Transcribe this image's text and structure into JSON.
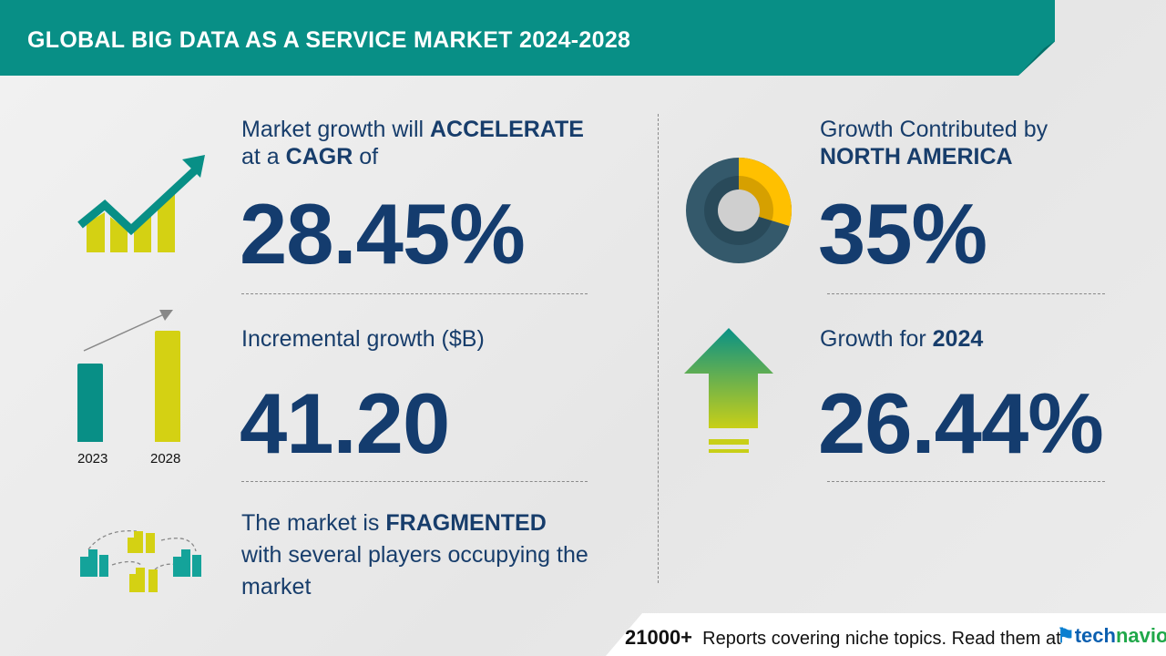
{
  "header": {
    "title": "GLOBAL BIG DATA AS A SERVICE MARKET 2024-2028"
  },
  "cagr": {
    "line1_pre": "Market growth will ",
    "line1_bold": "ACCELERATE",
    "line2_pre": "at a ",
    "line2_bold": "CAGR",
    "line2_post": " of",
    "value": "28.45%"
  },
  "incremental": {
    "label": "Incremental growth ($B)",
    "value": "41.20",
    "years": [
      "2023",
      "2028"
    ]
  },
  "market": {
    "line1_pre": "The market is ",
    "line1_bold": "FRAGMENTED",
    "line2": "with several players occupying the",
    "line3": "market"
  },
  "region": {
    "line1": "Growth Contributed by",
    "line2": "NORTH AMERICA",
    "value": "35%",
    "share_percent": 35
  },
  "yoy": {
    "label_pre": "Growth for ",
    "label_bold": "2024",
    "value": "26.44%"
  },
  "footer": {
    "count": "21000+",
    "text": "Reports covering niche topics. Read them at",
    "logo_a": "tech",
    "logo_b": "navio"
  },
  "colors": {
    "teal": "#088f86",
    "lime": "#d4d113",
    "navy": "#143c6e",
    "gold": "#ffc000",
    "slate": "#34596b"
  }
}
